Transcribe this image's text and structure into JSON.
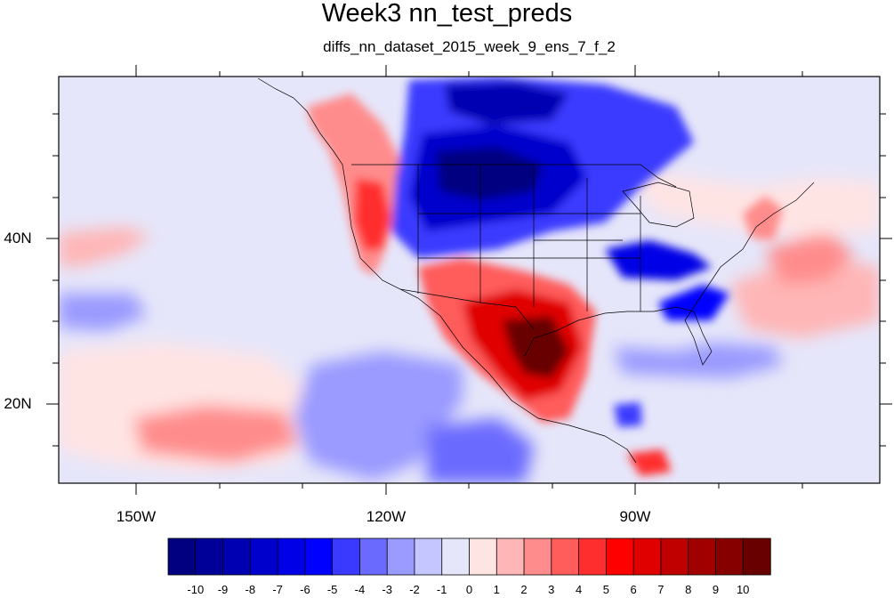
{
  "title": "Week3 nn_test_preds",
  "subtitle": "diffs_nn_dataset_2015_week_9_ens_7_f_2",
  "map": {
    "lon_labels": [
      "150W",
      "120W",
      "90W"
    ],
    "lat_labels": [
      "40N",
      "20N"
    ]
  },
  "colorbar": {
    "labels": [
      "-10",
      "-9",
      "-8",
      "-7",
      "-6",
      "-5",
      "-4",
      "-3",
      "-2",
      "-1",
      "0",
      "1",
      "2",
      "3",
      "4",
      "5",
      "6",
      "7",
      "8",
      "9",
      "10"
    ],
    "colors": [
      "#000080",
      "#000099",
      "#0000b3",
      "#0000cc",
      "#0000e6",
      "#0000ff",
      "#3a3aff",
      "#6a6aff",
      "#9a9aff",
      "#c5c5ff",
      "#e6e6fa",
      "#ffe4e4",
      "#ffb6b6",
      "#ff8c8c",
      "#ff5c5c",
      "#ff2e2e",
      "#ff0000",
      "#e00000",
      "#c00000",
      "#a00000",
      "#860000",
      "#680000"
    ]
  }
}
